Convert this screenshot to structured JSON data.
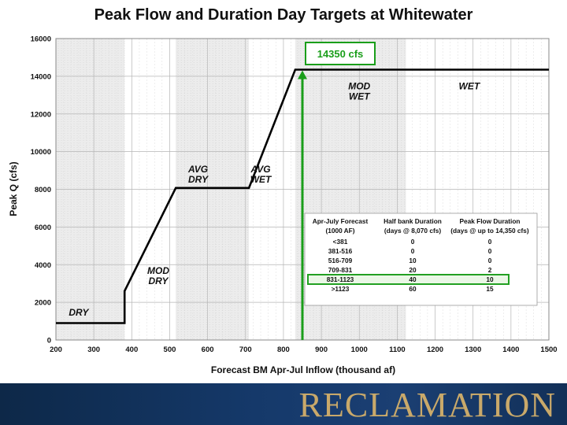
{
  "slide_title": "Peak Flow and Duration Day Targets at Whitewater",
  "footer_logo": "RECLAMATION",
  "chart_data": {
    "type": "line",
    "xlabel": "Forecast BM Apr-Jul Inflow (thousand af)",
    "ylabel": "Peak Q (cfs)",
    "xlim": [
      200,
      1500
    ],
    "ylim": [
      0,
      16000
    ],
    "x_ticks": [
      200,
      300,
      400,
      500,
      600,
      700,
      800,
      900,
      1000,
      1100,
      1200,
      1300,
      1400,
      1500
    ],
    "y_ticks": [
      0,
      2000,
      4000,
      6000,
      8000,
      10000,
      12000,
      14000,
      16000
    ],
    "grid": true,
    "series": [
      {
        "color": "#000000",
        "points": [
          [
            200,
            900
          ],
          [
            381,
            900
          ],
          [
            381,
            2600
          ],
          [
            516,
            8070
          ],
          [
            709,
            8070
          ],
          [
            831,
            14350
          ],
          [
            1500,
            14350
          ]
        ]
      }
    ],
    "shaded_bands": [
      [
        200,
        381
      ],
      [
        516,
        709
      ],
      [
        831,
        1123
      ]
    ],
    "vertical_line": {
      "x": 850,
      "y_end": 14350,
      "color": "#1a9e1a"
    },
    "callout": "14350 cfs",
    "zones": [
      {
        "lines": [
          "DRY"
        ],
        "x": 260,
        "y": 1300
      },
      {
        "lines": [
          "MOD",
          "DRY"
        ],
        "x": 470,
        "y": 3500
      },
      {
        "lines": [
          "AVG",
          "DRY"
        ],
        "x": 575,
        "y": 8900
      },
      {
        "lines": [
          "AVG",
          "WET"
        ],
        "x": 740,
        "y": 8900
      },
      {
        "lines": [
          "MOD",
          "WET"
        ],
        "x": 1000,
        "y": 13300
      },
      {
        "lines": [
          "WET"
        ],
        "x": 1290,
        "y": 13300
      }
    ],
    "table": {
      "headers": [
        [
          "Apr-July Forecast",
          "(1000 AF)"
        ],
        [
          "Half bank Duration",
          "(days @ 8,070 cfs)"
        ],
        [
          "Peak Flow Duration",
          "(days @ up to 14,350 cfs)"
        ]
      ],
      "rows": [
        [
          "<381",
          "0",
          "0"
        ],
        [
          "381-516",
          "0",
          "0"
        ],
        [
          "516-709",
          "10",
          "0"
        ],
        [
          "709-831",
          "20",
          "2"
        ],
        [
          "831-1123",
          "40",
          "10"
        ],
        [
          ">1123",
          "60",
          "15"
        ]
      ],
      "highlight_row": 4,
      "highlight_color": "#22a022"
    }
  }
}
